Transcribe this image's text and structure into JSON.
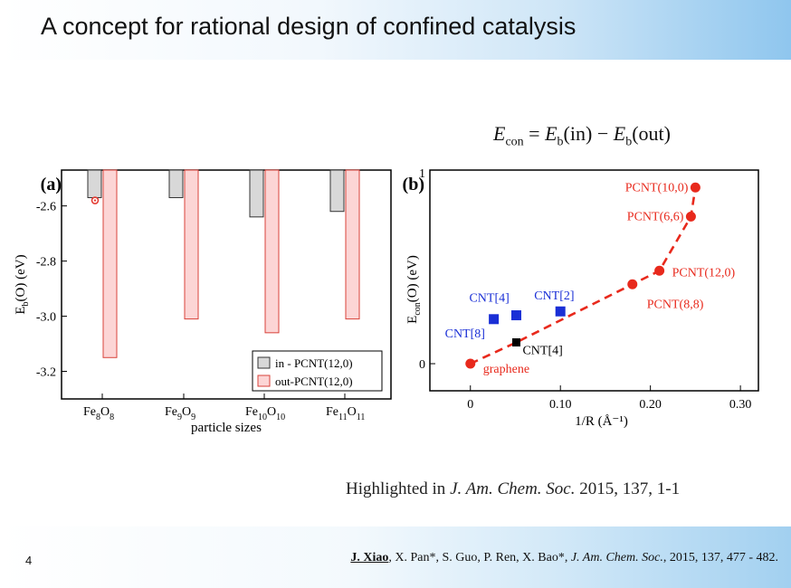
{
  "slide": {
    "title": "A concept for rational design of confined catalysis",
    "formula": {
      "lhs": "E",
      "lhs_sub": "con",
      "t1": "E",
      "t1_sub": "b",
      "t1_arg": "(in)",
      "t2": "E",
      "t2_sub": "b",
      "t2_arg": "(out)"
    },
    "highlight": {
      "prefix": "Highlighted in ",
      "journal": "J. Am. Chem. Soc.",
      "rest": " 2015, 137, 1-1"
    },
    "citation": {
      "author": "J. Xiao",
      "authors": ", X. Pan*, S. Guo, P. Ren, X. Bao*, ",
      "journal": "J. Am. Chem. Soc.",
      "rest": ", 2015, 137, 477 - 482."
    },
    "page_number": "4"
  },
  "chart_data": [
    {
      "type": "bar",
      "panel_label": "(a)",
      "xlabel": "particle sizes",
      "ylabel": "E_b(O) (eV)",
      "ylim": [
        -3.3,
        -2.47
      ],
      "yticks": [
        -2.6,
        -2.8,
        -3.0,
        -3.2
      ],
      "categories": [
        {
          "base": "Fe",
          "s1": "8",
          "mid": "O",
          "s2": "8"
        },
        {
          "base": "Fe",
          "s1": "9",
          "mid": "O",
          "s2": "9"
        },
        {
          "base": "Fe",
          "s1": "10",
          "mid": "O",
          "s2": "10"
        },
        {
          "base": "Fe",
          "s1": "11",
          "mid": "O",
          "s2": "11"
        }
      ],
      "series": [
        {
          "name": "in - PCNT(12,0)",
          "values": [
            -2.57,
            -2.57,
            -2.64,
            -2.62
          ],
          "color": "#d8d8d8"
        },
        {
          "name": "out-PCNT(12,0)",
          "values": [
            -3.15,
            -3.01,
            -3.06,
            -3.01
          ],
          "color": "#fcd5d5"
        }
      ],
      "legend": "bottom-right",
      "grid": false
    },
    {
      "type": "scatter",
      "panel_label": "(b)",
      "xlabel": "1/R (Å⁻¹)",
      "ylabel": "E_con(O) (eV)",
      "xlim": [
        -0.045,
        0.32
      ],
      "ylim": [
        -0.14,
        1.0
      ],
      "xticks": [
        "0",
        "0.10",
        "0.20",
        "0.30"
      ],
      "xtick_values": [
        0,
        0.1,
        0.2,
        0.3
      ],
      "yticks": [
        "0",
        "1"
      ],
      "ytick_values": [
        0,
        1
      ],
      "series": [
        {
          "group": "PCNT",
          "color": "#e8291c",
          "points": [
            {
              "label": "graphene",
              "x": 0,
              "y": 0
            },
            {
              "label": "PCNT(8,8)",
              "x": 0.18,
              "y": 0.41
            },
            {
              "label": "PCNT(12,0)",
              "x": 0.21,
              "y": 0.48
            },
            {
              "label": "PCNT(6,6)",
              "x": 0.245,
              "y": 0.76
            },
            {
              "label": "PCNT(10,0)",
              "x": 0.25,
              "y": 0.91
            }
          ]
        },
        {
          "group": "CNT-blue",
          "color": "#1a2fd6",
          "points": [
            {
              "label": "CNT[8]",
              "x": 0.026,
              "y": 0.23
            },
            {
              "label": "CNT[4]",
              "x": 0.051,
              "y": 0.25
            },
            {
              "label": "CNT[2]",
              "x": 0.1,
              "y": 0.27
            }
          ]
        },
        {
          "group": "CNT-black",
          "color": "#000000",
          "points": [
            {
              "label": "CNT[4]",
              "x": 0.051,
              "y": 0.11
            }
          ]
        }
      ],
      "grid": false
    }
  ]
}
